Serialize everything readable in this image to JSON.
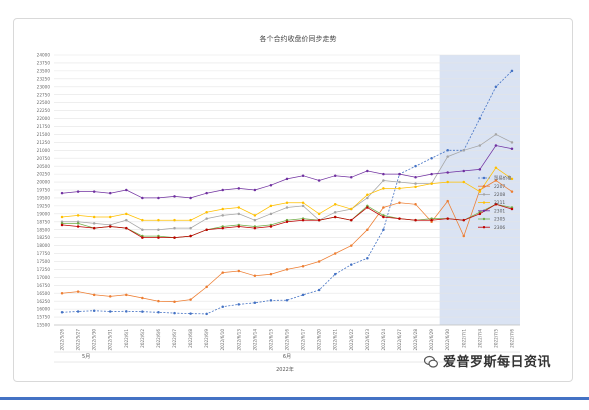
{
  "watermark": {
    "text": "爱普罗斯每日资讯"
  },
  "chart_data": {
    "type": "line",
    "title": "各个合约收盘价同步走势",
    "xlabel": "",
    "ylabel": "",
    "ylim": [
      15500,
      24000
    ],
    "ytick_step": 250,
    "categories": [
      "2022/5/26",
      "2022/5/27",
      "2022/5/30",
      "2022/5/31",
      "2022/6/1",
      "2022/6/2",
      "2022/6/6",
      "2022/6/7",
      "2022/6/8",
      "2022/6/9",
      "2022/6/10",
      "2022/6/13",
      "2022/6/14",
      "2022/6/15",
      "2022/6/16",
      "2022/6/17",
      "2022/6/20",
      "2022/6/21",
      "2022/6/22",
      "2022/6/23",
      "2022/6/24",
      "2022/6/27",
      "2022/6/28",
      "2022/6/29",
      "2022/6/30",
      "2022/7/1",
      "2022/7/4",
      "2022/7/5",
      "2022/7/6"
    ],
    "group_labels": [
      {
        "label": "5月",
        "from": 0,
        "to": 3
      },
      {
        "label": "6月",
        "from": 4,
        "to": 24
      }
    ],
    "year_label": "2022年",
    "shaded_from_index": 24,
    "legend_position": "right",
    "grid": true,
    "series": [
      {
        "name": "贸易价格",
        "color": "#4472c4",
        "dashed": true,
        "values": [
          15900,
          15925,
          15950,
          15925,
          15930,
          15920,
          15900,
          15875,
          15860,
          15850,
          16075,
          16150,
          16200,
          16275,
          16280,
          16450,
          16600,
          17100,
          17400,
          17600,
          18500,
          20250,
          20500,
          20750,
          21000,
          21000,
          22000,
          23000,
          23500
        ]
      },
      {
        "name": "2207",
        "color": "#ed7d31",
        "values": [
          16500,
          16550,
          16450,
          16400,
          16450,
          16350,
          16250,
          16230,
          16300,
          16700,
          17150,
          17200,
          17050,
          17100,
          17250,
          17350,
          17500,
          17750,
          18000,
          18500,
          19200,
          19350,
          19300,
          18750,
          19400,
          18300,
          19750,
          20050,
          19700
        ]
      },
      {
        "name": "2208",
        "color": "#a5a5a5",
        "values": [
          18750,
          18750,
          18700,
          18650,
          18800,
          18500,
          18500,
          18550,
          18550,
          18850,
          18950,
          19000,
          18800,
          19000,
          19200,
          19250,
          18800,
          19050,
          19150,
          19500,
          20050,
          20000,
          19950,
          19950,
          20800,
          21000,
          21150,
          21500,
          21250
        ]
      },
      {
        "name": "2211",
        "color": "#ffc000",
        "values": [
          18900,
          18950,
          18900,
          18900,
          19000,
          18800,
          18800,
          18800,
          18800,
          19050,
          19150,
          19200,
          18950,
          19250,
          19350,
          19350,
          19000,
          19300,
          19150,
          19600,
          19800,
          19800,
          19850,
          19950,
          20000,
          20000,
          19700,
          20450,
          20100
        ]
      },
      {
        "name": "2301",
        "color": "#7030a0",
        "values": [
          19650,
          19700,
          19700,
          19650,
          19750,
          19500,
          19500,
          19550,
          19500,
          19650,
          19750,
          19800,
          19750,
          19900,
          20100,
          20200,
          20050,
          20200,
          20150,
          20350,
          20250,
          20250,
          20150,
          20250,
          20300,
          20350,
          20400,
          21150,
          21050
        ]
      },
      {
        "name": "2305",
        "color": "#70ad47",
        "values": [
          18700,
          18700,
          18550,
          18600,
          18550,
          18300,
          18300,
          18250,
          18300,
          18500,
          18600,
          18650,
          18600,
          18650,
          18800,
          18850,
          18800,
          18900,
          18800,
          19250,
          18950,
          18850,
          18800,
          18850,
          18850,
          18800,
          19050,
          19300,
          19200
        ]
      },
      {
        "name": "2306",
        "color": "#c00000",
        "values": [
          18650,
          18600,
          18550,
          18600,
          18550,
          18250,
          18250,
          18250,
          18300,
          18500,
          18550,
          18600,
          18550,
          18600,
          18750,
          18800,
          18800,
          18900,
          18800,
          19200,
          18900,
          18850,
          18800,
          18800,
          18850,
          18800,
          19000,
          19300,
          19150
        ]
      }
    ]
  }
}
